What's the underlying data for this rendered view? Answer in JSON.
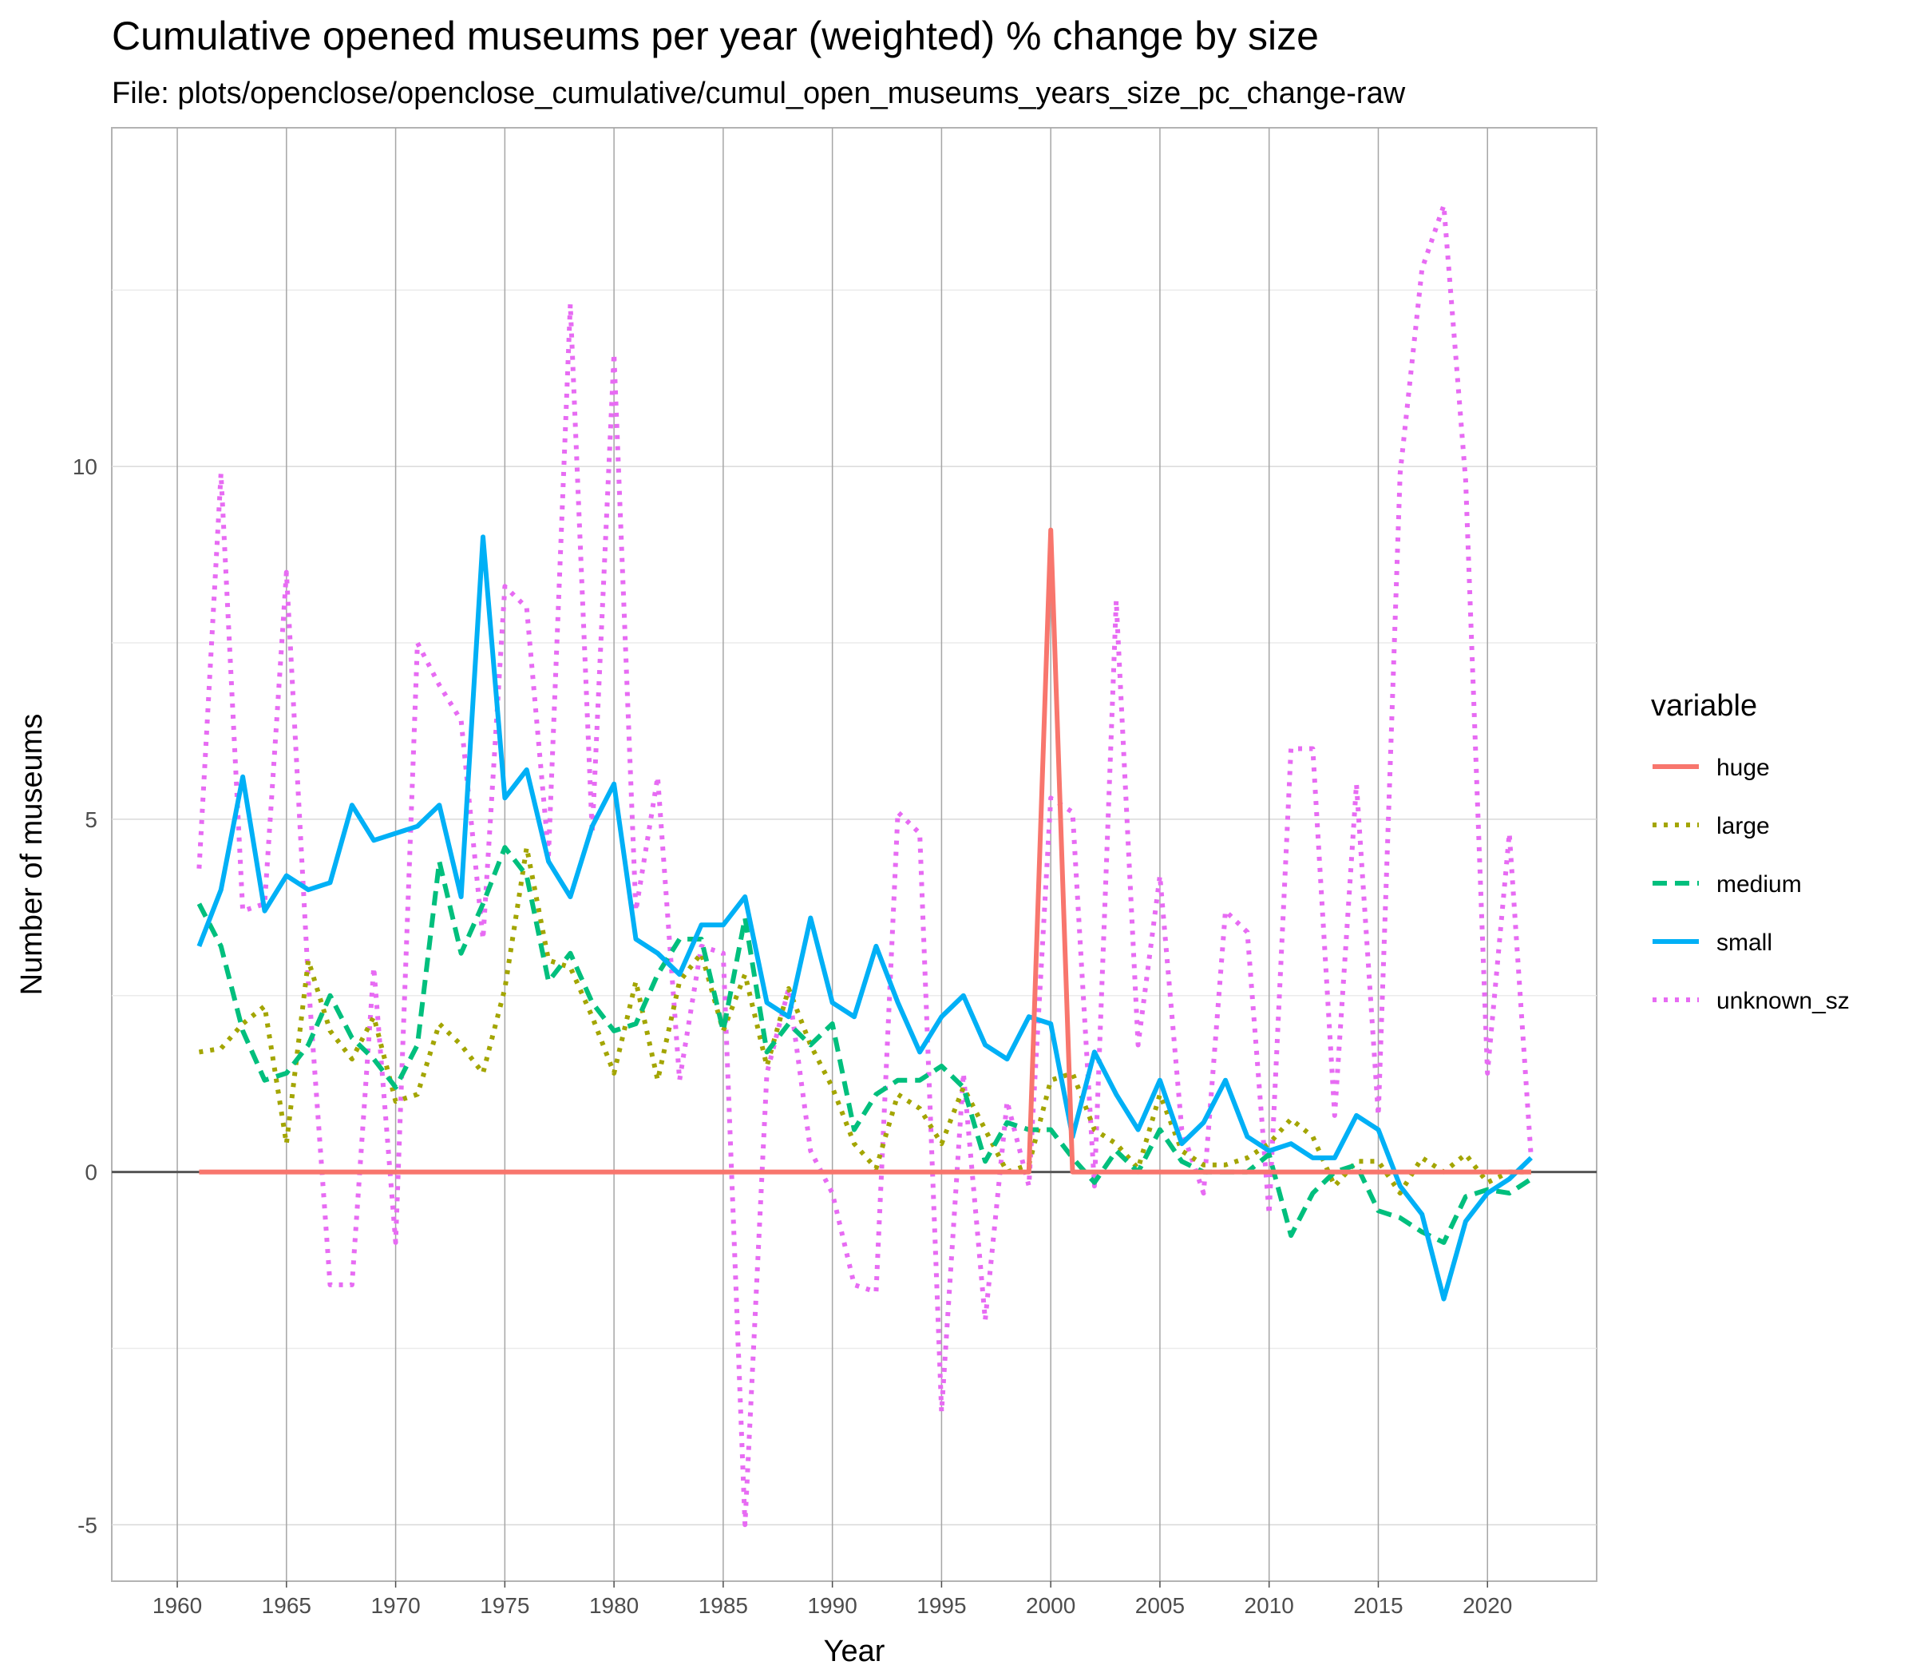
{
  "chart_data": {
    "type": "line",
    "title": "Cumulative opened museums per year (weighted) % change by size",
    "subtitle": "File: plots/openclose/openclose_cumulative/cumul_open_museums_years_size_pc_change-raw",
    "xlabel": "Year",
    "ylabel": "Number of museums",
    "xlim": [
      1957,
      2025
    ],
    "ylim": [
      -5.8,
      14.8
    ],
    "x_ticks": [
      1960,
      1965,
      1970,
      1975,
      1980,
      1985,
      1990,
      1995,
      2000,
      2005,
      2010,
      2015,
      2020
    ],
    "y_ticks": [
      -5,
      0,
      5,
      10
    ],
    "grid": true,
    "legend_title": "variable",
    "legend_position": "right",
    "x": [
      1961,
      1962,
      1963,
      1964,
      1965,
      1966,
      1967,
      1968,
      1969,
      1970,
      1971,
      1972,
      1973,
      1974,
      1975,
      1976,
      1977,
      1978,
      1979,
      1980,
      1981,
      1982,
      1983,
      1984,
      1985,
      1986,
      1987,
      1988,
      1989,
      1990,
      1991,
      1992,
      1993,
      1994,
      1995,
      1996,
      1997,
      1998,
      1999,
      2000,
      2001,
      2002,
      2003,
      2004,
      2005,
      2006,
      2007,
      2008,
      2009,
      2010,
      2011,
      2012,
      2013,
      2014,
      2015,
      2016,
      2017,
      2018,
      2019,
      2020,
      2021,
      2022
    ],
    "series": [
      {
        "name": "huge",
        "color": "#F8766D",
        "dash": "solid",
        "values": [
          0,
          0,
          0,
          0,
          0,
          0,
          0,
          0,
          0,
          0,
          0,
          0,
          0,
          0,
          0,
          0,
          0,
          0,
          0,
          0,
          0,
          0,
          0,
          0,
          0,
          0,
          0,
          0,
          0,
          0,
          0,
          0,
          0,
          0,
          0,
          0,
          0,
          0,
          0,
          9.1,
          0,
          0,
          0,
          0,
          0,
          0,
          0,
          0,
          0,
          0,
          0,
          0,
          0,
          0,
          0,
          0,
          0,
          0,
          0,
          0,
          0,
          0
        ]
      },
      {
        "name": "large",
        "color": "#A3A500",
        "dash": "dotted",
        "values": [
          1.7,
          1.75,
          2.1,
          2.35,
          0.4,
          3.0,
          2.0,
          1.6,
          2.2,
          1.0,
          1.1,
          2.1,
          1.8,
          1.4,
          2.6,
          4.6,
          3.0,
          2.9,
          2.2,
          1.4,
          2.7,
          1.3,
          2.7,
          3.1,
          2.0,
          2.8,
          1.5,
          2.6,
          1.8,
          1.2,
          0.4,
          0.05,
          1.1,
          0.9,
          0.4,
          1.2,
          0.6,
          0,
          0.1,
          1.3,
          1.4,
          0.6,
          0.4,
          0.05,
          1.1,
          0.3,
          0.1,
          0.1,
          0.2,
          0.4,
          0.75,
          0.5,
          -0.2,
          0.15,
          0.15,
          -0.3,
          0.2,
          0,
          0.25,
          -0.15,
          0,
          0
        ]
      },
      {
        "name": "medium",
        "color": "#00BF7D",
        "dash": "dashed",
        "values": [
          3.8,
          3.2,
          2.0,
          1.3,
          1.4,
          1.8,
          2.5,
          1.9,
          1.6,
          1.2,
          1.8,
          4.4,
          3.1,
          3.8,
          4.6,
          4.2,
          2.7,
          3.1,
          2.4,
          2.0,
          2.1,
          2.8,
          3.3,
          3.3,
          2.0,
          3.6,
          1.7,
          2.1,
          1.8,
          2.1,
          0.6,
          1.1,
          1.3,
          1.3,
          1.5,
          1.2,
          0.15,
          0.7,
          0.6,
          0.6,
          0.2,
          -0.15,
          0.3,
          0,
          0.6,
          0.15,
          0,
          0,
          0,
          0.25,
          -0.9,
          -0.3,
          0,
          0.1,
          -0.55,
          -0.65,
          -0.85,
          -1.0,
          -0.35,
          -0.25,
          -0.3,
          -0.1
        ]
      },
      {
        "name": "small",
        "color": "#00B0F6",
        "dash": "solid",
        "values": [
          3.2,
          4.0,
          5.6,
          3.7,
          4.2,
          4.0,
          4.1,
          5.2,
          4.7,
          4.8,
          4.9,
          5.2,
          3.9,
          9.0,
          5.3,
          5.7,
          4.4,
          3.9,
          4.9,
          5.5,
          3.3,
          3.1,
          2.8,
          3.5,
          3.5,
          3.9,
          2.4,
          2.2,
          3.6,
          2.4,
          2.2,
          3.2,
          2.4,
          1.7,
          2.2,
          2.5,
          1.8,
          1.6,
          2.2,
          2.1,
          0.5,
          1.7,
          1.1,
          0.6,
          1.3,
          0.4,
          0.7,
          1.3,
          0.5,
          0.3,
          0.4,
          0.2,
          0.2,
          0.8,
          0.6,
          -0.2,
          -0.6,
          -1.8,
          -0.7,
          -0.3,
          -0.1,
          0.2
        ]
      },
      {
        "name": "unknown_sz",
        "color": "#E76BF3",
        "dash": "dotted",
        "values": [
          4.3,
          9.9,
          3.7,
          3.8,
          8.5,
          2.7,
          -1.6,
          -1.6,
          2.9,
          -1.0,
          7.5,
          6.9,
          6.4,
          3.3,
          8.3,
          8.0,
          4.5,
          12.3,
          4.8,
          11.6,
          3.7,
          5.6,
          1.3,
          3.2,
          3.1,
          -5.0,
          1.4,
          2.6,
          0.3,
          -0.3,
          -1.6,
          -1.7,
          5.1,
          4.8,
          -3.4,
          1.4,
          -2.1,
          1.0,
          -0.2,
          5.3,
          5.1,
          -0.2,
          8.1,
          1.8,
          4.2,
          0.6,
          -0.3,
          3.7,
          3.4,
          -0.6,
          6.0,
          6.0,
          0.8,
          5.5,
          0.8,
          9.9,
          12.8,
          13.7,
          9.8,
          1.4,
          4.8,
          0.2
        ]
      }
    ],
    "reference_line": {
      "y": 0,
      "color": "#555555"
    }
  }
}
